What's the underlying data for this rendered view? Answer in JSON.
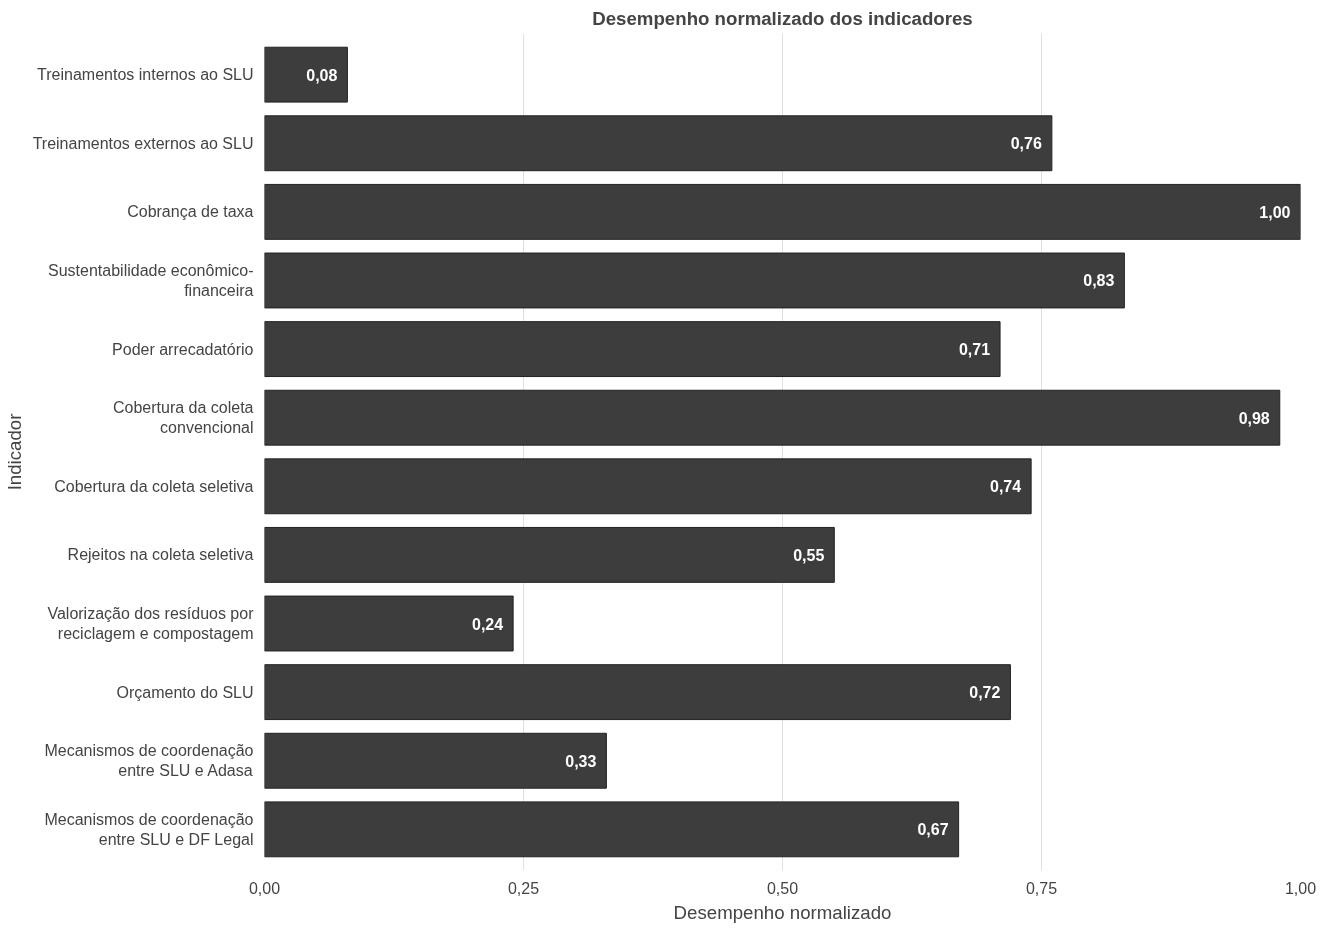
{
  "chart_data": {
    "type": "bar",
    "orientation": "horizontal",
    "title": "Desempenho normalizado dos indicadores",
    "xlabel": "Desempenho normalizado",
    "ylabel": "Indicador",
    "categories": [
      "Treinamentos internos ao SLU",
      "Treinamentos externos ao SLU",
      "Cobrança de taxa",
      "Sustentabilidade econômico-financeira",
      "Poder arrecadatório",
      "Cobertura da coleta convencional",
      "Cobertura da coleta seletiva",
      "Rejeitos na coleta seletiva",
      "Valorização dos resíduos por reciclagem e compostagem",
      "Orçamento do SLU",
      "Mecanismos de coordenação entre SLU e Adasa",
      "Mecanismos de coordenação entre SLU e DF Legal"
    ],
    "values": [
      0.08,
      0.76,
      1.0,
      0.83,
      0.71,
      0.98,
      0.74,
      0.55,
      0.24,
      0.72,
      0.33,
      0.67
    ],
    "value_labels": [
      "0,08",
      "0,76",
      "1,00",
      "0,83",
      "0,71",
      "0,98",
      "0,74",
      "0,55",
      "0,24",
      "0,72",
      "0,33",
      "0,67"
    ],
    "color": "#3d3d3d",
    "xlim": [
      0,
      1
    ],
    "xticks": [
      {
        "value": 0,
        "label": "0,00"
      },
      {
        "value": 0.25,
        "label": "0,25"
      },
      {
        "value": 0.5,
        "label": "0,50"
      },
      {
        "value": 0.75,
        "label": "0,75"
      },
      {
        "value": 1,
        "label": "1,00"
      }
    ],
    "grid": "x"
  }
}
